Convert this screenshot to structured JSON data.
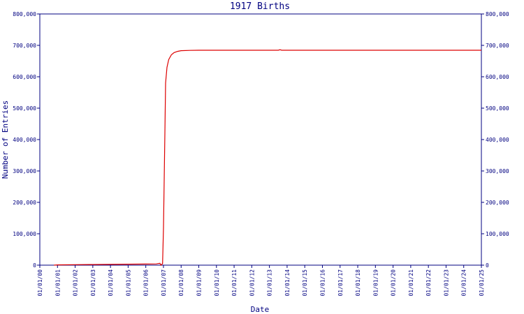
{
  "chart_data": {
    "type": "line",
    "title": "1917 Births",
    "xlabel": "Date",
    "ylabel": "Number of Entries",
    "x_tick_labels": [
      "01/01/00",
      "01/01/01",
      "01/01/02",
      "01/01/03",
      "01/01/04",
      "01/01/05",
      "01/01/06",
      "01/01/07",
      "01/01/08",
      "01/01/09",
      "01/01/10",
      "01/01/11",
      "01/01/12",
      "01/01/13",
      "01/01/14",
      "01/01/15",
      "01/01/16",
      "01/01/17",
      "01/01/18",
      "01/01/19",
      "01/01/20",
      "01/01/21",
      "01/01/22",
      "01/01/23",
      "01/01/24",
      "01/01/25"
    ],
    "y_tick_labels": [
      "0",
      "100,000",
      "200,000",
      "300,000",
      "400,000",
      "500,000",
      "600,000",
      "700,000",
      "800,000"
    ],
    "xlim": [
      0,
      25
    ],
    "ylim": [
      0,
      800000
    ],
    "grid": false,
    "right_axis_mirror": true,
    "series": [
      {
        "color": "#dd0000",
        "points": [
          [
            0.8,
            0
          ],
          [
            1.0,
            1000
          ],
          [
            2.0,
            1500
          ],
          [
            3.0,
            2000
          ],
          [
            4.0,
            2500
          ],
          [
            5.0,
            3000
          ],
          [
            6.0,
            3500
          ],
          [
            6.6,
            4000
          ],
          [
            6.8,
            6000
          ],
          [
            6.85,
            0
          ],
          [
            6.95,
            5000
          ],
          [
            7.0,
            120000
          ],
          [
            7.08,
            420000
          ],
          [
            7.12,
            580000
          ],
          [
            7.2,
            630000
          ],
          [
            7.3,
            655000
          ],
          [
            7.45,
            670000
          ],
          [
            7.6,
            677000
          ],
          [
            7.8,
            681000
          ],
          [
            8.0,
            683000
          ],
          [
            8.5,
            684000
          ],
          [
            9.0,
            684500
          ],
          [
            10.0,
            684500
          ],
          [
            13.5,
            684500
          ],
          [
            13.6,
            686000
          ],
          [
            13.7,
            684500
          ],
          [
            15.0,
            684500
          ],
          [
            20.0,
            684500
          ],
          [
            25.0,
            684500
          ]
        ]
      }
    ]
  }
}
